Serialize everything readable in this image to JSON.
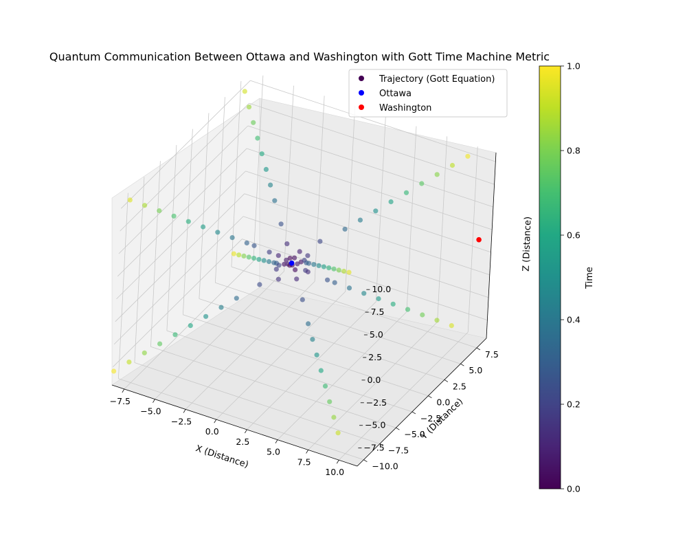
{
  "chart_data": {
    "type": "scatter",
    "title": "Quantum Communication Between Ottawa and Washington with Gott Time Machine Metric",
    "xlabel": "X (Distance)",
    "ylabel": "Y (Distance)",
    "zlabel": "Z (Distance)",
    "x_ticks": [
      "−7.5",
      "−5.0",
      "−2.5",
      "0.0",
      "2.5",
      "5.0",
      "7.5",
      "10.0"
    ],
    "y_ticks": [
      "−10.0",
      "−7.5",
      "−5.0",
      "−2.5",
      "0.0",
      "2.5",
      "5.0",
      "7.5"
    ],
    "z_ticks": [
      "−7.5",
      "−5.0",
      "−2.5",
      "0.0",
      "2.5",
      "5.0",
      "7.5",
      "10.0"
    ],
    "xlim": [
      -8.5,
      11.5
    ],
    "ylim": [
      -11,
      9
    ],
    "zlim": [
      -9.5,
      11
    ],
    "grid": true,
    "legend_position": "top-right",
    "legend": [
      {
        "name": "Trajectory (Gott Equation)",
        "color": "#440154"
      },
      {
        "name": "Ottawa",
        "color": "#0000ff"
      },
      {
        "name": "Washington",
        "color": "#ff0000"
      }
    ],
    "colorbar": {
      "label": "Time",
      "min": 0,
      "max": 1,
      "ticks": [
        "0.0",
        "0.2",
        "0.4",
        "0.6",
        "0.8",
        "1.0"
      ],
      "colormap": "viridis"
    },
    "series": [
      {
        "name": "Trajectory (Gott Equation)",
        "color_by": "t",
        "points": [
          {
            "x": -0.2,
            "y": 0.1,
            "z": -0.4,
            "t": 0.0
          },
          {
            "x": 0.1,
            "y": -0.1,
            "z": -0.1,
            "t": 0.01
          },
          {
            "x": -0.3,
            "y": 0.3,
            "z": 0.2,
            "t": 0.02
          },
          {
            "x": 0.3,
            "y": 0.0,
            "z": -0.6,
            "t": 0.03
          },
          {
            "x": 0.0,
            "y": 0.4,
            "z": 0.3,
            "t": 0.04
          },
          {
            "x": -0.5,
            "y": -0.2,
            "z": -0.2,
            "t": 0.05
          },
          {
            "x": 0.5,
            "y": 0.5,
            "z": 0.0,
            "t": 0.06
          },
          {
            "x": -0.2,
            "y": -0.5,
            "z": 0.6,
            "t": 0.07
          },
          {
            "x": 0.6,
            "y": -0.3,
            "z": 0.4,
            "t": 0.08
          },
          {
            "x": -0.6,
            "y": 0.6,
            "z": -0.8,
            "t": 0.09
          },
          {
            "x": 0.2,
            "y": 0.8,
            "z": 0.8,
            "t": 0.1
          },
          {
            "x": -0.8,
            "y": -0.6,
            "z": 0.9,
            "t": 0.11
          },
          {
            "x": 0.8,
            "y": -0.7,
            "z": -0.9,
            "t": 0.12
          },
          {
            "x": -0.9,
            "y": 0.9,
            "z": 1.1,
            "t": 0.13
          },
          {
            "x": 0.9,
            "y": 0.9,
            "z": -1.2,
            "t": 0.14
          },
          {
            "x": -0.5,
            "y": -1.0,
            "z": -1.3,
            "t": 0.15
          },
          {
            "x": 1.2,
            "y": 0.1,
            "z": 1.3,
            "t": 0.16
          },
          {
            "x": -1.3,
            "y": 0.2,
            "z": -1.4,
            "t": 0.17
          },
          {
            "x": 0.5,
            "y": 1.3,
            "z": -1.5,
            "t": 0.18
          },
          {
            "x": -1.2,
            "y": -1.3,
            "z": 1.6,
            "t": 0.19
          },
          {
            "x": 1.5,
            "y": -1.0,
            "z": 1.7,
            "t": 0.2
          },
          {
            "x": -1.6,
            "y": 1.2,
            "z": -1.8,
            "t": 0.21
          },
          {
            "x": 1.4,
            "y": 1.6,
            "z": 1.9,
            "t": 0.22
          },
          {
            "x": -1.7,
            "y": -1.6,
            "z": -2.0,
            "t": 0.23
          },
          {
            "x": 1.8,
            "y": -1.6,
            "z": -2.1,
            "t": 0.24
          },
          {
            "x": -1.9,
            "y": 1.8,
            "z": 2.2,
            "t": 0.25
          },
          {
            "x": 2.0,
            "y": 1.9,
            "z": -2.3,
            "t": 0.26
          },
          {
            "x": -2.1,
            "y": -2.0,
            "z": 2.4,
            "t": 0.27
          },
          {
            "x": 2.2,
            "y": -2.1,
            "z": 2.5,
            "t": 0.28
          },
          {
            "x": -2.3,
            "y": 2.2,
            "z": -2.6,
            "t": 0.29
          },
          {
            "x": 2.4,
            "y": 2.3,
            "z": -2.7,
            "t": 0.3
          },
          {
            "x": -2.5,
            "y": -2.4,
            "z": 2.8,
            "t": 0.31
          },
          {
            "x": 2.6,
            "y": -2.5,
            "z": 2.9,
            "t": 0.32
          },
          {
            "x": -2.7,
            "y": 2.6,
            "z": -3.0,
            "t": 0.33
          },
          {
            "x": 2.8,
            "y": 2.7,
            "z": 3.1,
            "t": 0.34
          },
          {
            "x": -2.9,
            "y": -2.8,
            "z": -3.2,
            "t": 0.35
          },
          {
            "x": 3.0,
            "y": -2.9,
            "z": -3.3,
            "t": 0.36
          },
          {
            "x": -3.1,
            "y": 3.0,
            "z": 3.4,
            "t": 0.37
          },
          {
            "x": 3.2,
            "y": 3.1,
            "z": -3.5,
            "t": 0.38
          },
          {
            "x": -3.3,
            "y": -3.2,
            "z": 3.6,
            "t": 0.39
          },
          {
            "x": 3.4,
            "y": -3.3,
            "z": 3.7,
            "t": 0.4
          },
          {
            "x": -3.5,
            "y": 3.4,
            "z": -3.8,
            "t": 0.41
          },
          {
            "x": 3.6,
            "y": 3.5,
            "z": 3.9,
            "t": 0.42
          },
          {
            "x": -3.7,
            "y": -3.6,
            "z": -4.0,
            "t": 0.43
          },
          {
            "x": 3.8,
            "y": -3.7,
            "z": -4.1,
            "t": 0.44
          },
          {
            "x": -3.9,
            "y": 3.8,
            "z": 4.2,
            "t": 0.45
          },
          {
            "x": 4.0,
            "y": 3.9,
            "z": -4.3,
            "t": 0.46
          },
          {
            "x": -4.1,
            "y": -4.0,
            "z": 4.4,
            "t": 0.47
          },
          {
            "x": 4.2,
            "y": -4.1,
            "z": 4.5,
            "t": 0.48
          },
          {
            "x": -4.3,
            "y": 4.2,
            "z": -4.6,
            "t": 0.49
          },
          {
            "x": 4.4,
            "y": 4.3,
            "z": 4.7,
            "t": 0.5
          },
          {
            "x": -4.5,
            "y": -4.4,
            "z": -4.8,
            "t": 0.51
          },
          {
            "x": 4.6,
            "y": -4.5,
            "z": -4.9,
            "t": 0.52
          },
          {
            "x": -4.7,
            "y": 4.6,
            "z": 5.0,
            "t": 0.53
          },
          {
            "x": 4.8,
            "y": 4.7,
            "z": -5.1,
            "t": 0.54
          },
          {
            "x": -4.9,
            "y": -4.8,
            "z": 5.2,
            "t": 0.55
          },
          {
            "x": 5.0,
            "y": -4.9,
            "z": 5.3,
            "t": 0.56
          },
          {
            "x": -5.1,
            "y": 5.0,
            "z": -5.4,
            "t": 0.57
          },
          {
            "x": 5.2,
            "y": 5.1,
            "z": 5.5,
            "t": 0.58
          },
          {
            "x": -5.3,
            "y": -5.2,
            "z": -5.6,
            "t": 0.59
          },
          {
            "x": 5.4,
            "y": -5.3,
            "z": -5.7,
            "t": 0.6
          },
          {
            "x": -5.5,
            "y": 5.4,
            "z": 5.8,
            "t": 0.61
          },
          {
            "x": 5.6,
            "y": 5.5,
            "z": -5.9,
            "t": 0.62
          },
          {
            "x": -5.7,
            "y": -5.6,
            "z": 6.0,
            "t": 0.63
          },
          {
            "x": 5.8,
            "y": -5.7,
            "z": 6.1,
            "t": 0.64
          },
          {
            "x": -5.9,
            "y": 5.8,
            "z": -6.2,
            "t": 0.65
          },
          {
            "x": 6.0,
            "y": 5.9,
            "z": 6.3,
            "t": 0.66
          },
          {
            "x": -6.1,
            "y": -6.0,
            "z": -6.4,
            "t": 0.67
          },
          {
            "x": 6.2,
            "y": -6.1,
            "z": -6.5,
            "t": 0.68
          },
          {
            "x": -6.3,
            "y": 6.2,
            "z": 6.6,
            "t": 0.69
          },
          {
            "x": 6.4,
            "y": 6.3,
            "z": -6.7,
            "t": 0.7
          },
          {
            "x": -6.5,
            "y": -6.4,
            "z": 6.8,
            "t": 0.71
          },
          {
            "x": 6.6,
            "y": -6.5,
            "z": 6.9,
            "t": 0.72
          },
          {
            "x": -6.7,
            "y": 6.6,
            "z": -7.0,
            "t": 0.73
          },
          {
            "x": 6.8,
            "y": 6.7,
            "z": 7.1,
            "t": 0.74
          },
          {
            "x": -6.9,
            "y": -6.8,
            "z": -7.2,
            "t": 0.75
          },
          {
            "x": 7.0,
            "y": -6.9,
            "z": -7.3,
            "t": 0.76
          },
          {
            "x": -7.1,
            "y": 7.0,
            "z": 7.4,
            "t": 0.77
          },
          {
            "x": 7.2,
            "y": 7.1,
            "z": -7.5,
            "t": 0.78
          },
          {
            "x": -7.3,
            "y": -7.2,
            "z": 7.6,
            "t": 0.79
          },
          {
            "x": 7.4,
            "y": -7.3,
            "z": 7.7,
            "t": 0.8
          },
          {
            "x": -7.5,
            "y": 7.4,
            "z": -7.8,
            "t": 0.81
          },
          {
            "x": 7.6,
            "y": 7.5,
            "z": 7.9,
            "t": 0.82
          },
          {
            "x": -7.7,
            "y": -7.6,
            "z": -8.0,
            "t": 0.83
          },
          {
            "x": 7.8,
            "y": -7.7,
            "z": -8.1,
            "t": 0.84
          },
          {
            "x": -7.9,
            "y": 7.8,
            "z": 8.2,
            "t": 0.85
          },
          {
            "x": 8.0,
            "y": 7.9,
            "z": -8.3,
            "t": 0.86
          },
          {
            "x": -8.1,
            "y": -8.0,
            "z": 8.4,
            "t": 0.87
          },
          {
            "x": 8.2,
            "y": -8.1,
            "z": 8.5,
            "t": 0.88
          },
          {
            "x": -8.3,
            "y": 8.2,
            "z": -8.6,
            "t": 0.89
          },
          {
            "x": 8.4,
            "y": 8.3,
            "z": 8.7,
            "t": 0.9
          },
          {
            "x": -8.5,
            "y": -8.4,
            "z": -8.8,
            "t": 0.91
          },
          {
            "x": 8.6,
            "y": -8.5,
            "z": -8.9,
            "t": 0.92
          },
          {
            "x": -8.7,
            "y": 8.6,
            "z": 9.0,
            "t": 0.93
          },
          {
            "x": 8.8,
            "y": 8.7,
            "z": -9.1,
            "t": 0.94
          },
          {
            "x": -8.9,
            "y": -8.8,
            "z": 9.2,
            "t": 0.95
          },
          {
            "x": 9.0,
            "y": -8.9,
            "z": 9.3,
            "t": 0.96
          },
          {
            "x": -9.1,
            "y": 9.0,
            "z": -9.4,
            "t": 0.97
          },
          {
            "x": 9.2,
            "y": 9.1,
            "z": 9.5,
            "t": 0.98
          },
          {
            "x": -9.3,
            "y": -9.2,
            "z": -9.6,
            "t": 0.99
          }
        ]
      },
      {
        "name": "Ottawa",
        "color": "#0000ff",
        "points": [
          {
            "x": 0,
            "y": 0,
            "z": 0
          }
        ]
      },
      {
        "name": "Washington",
        "color": "#ff0000",
        "points": [
          {
            "x": 10,
            "y": 10,
            "z": 0
          }
        ]
      }
    ]
  }
}
